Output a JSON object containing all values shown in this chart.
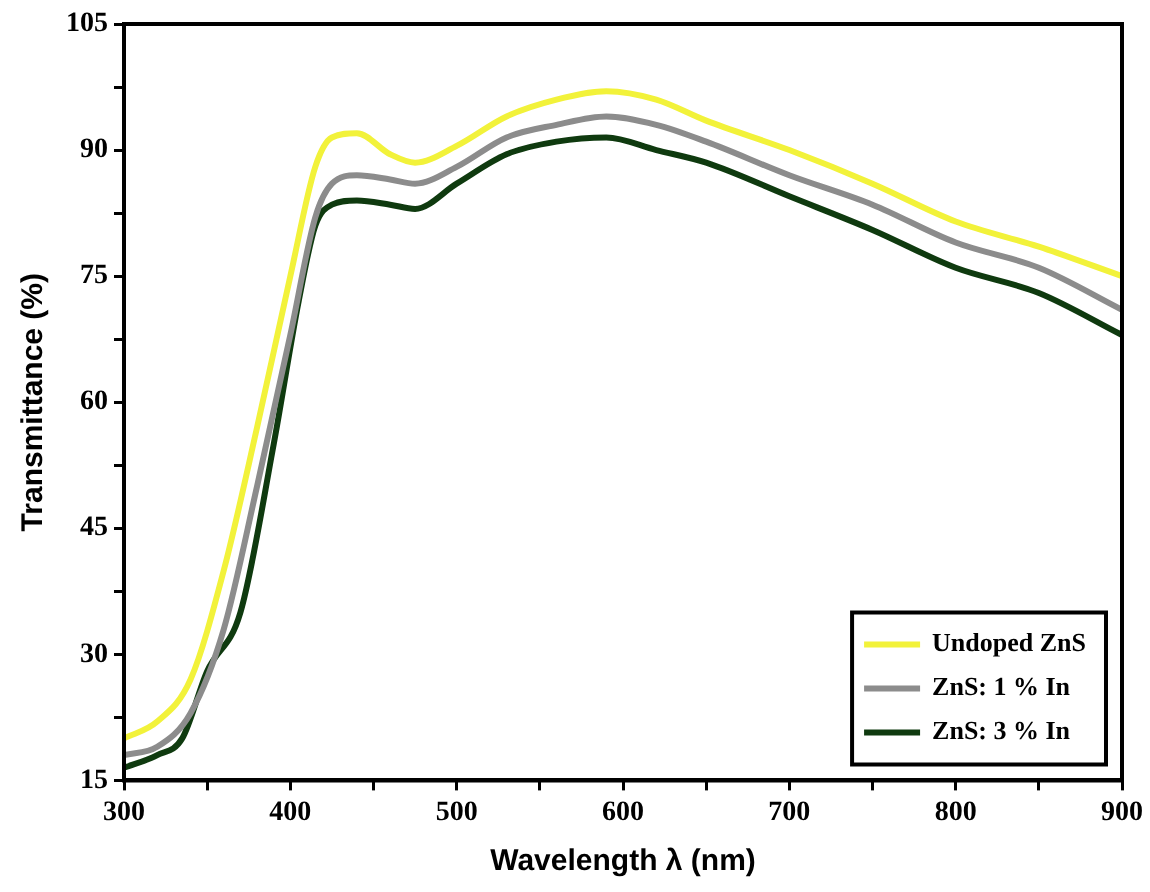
{
  "chart_data": {
    "type": "line",
    "xlabel": "Wavelength λ (nm)",
    "ylabel": "Transmittance (%)",
    "xlim": [
      300,
      900
    ],
    "xticks": [
      300,
      {
        "value": 350,
        "label": null
      },
      400,
      {
        "value": 450,
        "label": null
      },
      500,
      {
        "value": 550,
        "label": null
      },
      600,
      {
        "value": 650,
        "label": null
      },
      700,
      {
        "value": 750,
        "label": null
      },
      800,
      {
        "value": 850,
        "label": null
      },
      900
    ],
    "ylim": [
      15,
      105
    ],
    "yticks": [
      15,
      {
        "value": 22.5,
        "label": null
      },
      30,
      {
        "value": 37.5,
        "label": null
      },
      45,
      {
        "value": 52.5,
        "label": null
      },
      60,
      {
        "value": 67.5,
        "label": null
      },
      75,
      {
        "value": 82.5,
        "label": null
      },
      90,
      {
        "value": 97.5,
        "label": null
      },
      105
    ],
    "grid": false,
    "legend": "bottom right",
    "marker": "none",
    "line_style": "solid",
    "series": [
      {
        "name": "Undoped ZnS",
        "color": "#f2f23a",
        "x": [
          300,
          320,
          340,
          360,
          380,
          400,
          415,
          425,
          440,
          460,
          475,
          500,
          530,
          560,
          590,
          620,
          650,
          700,
          750,
          800,
          850,
          900
        ],
        "values": [
          20,
          22,
          27,
          40,
          57,
          75,
          88,
          91.5,
          92,
          89.5,
          88.5,
          90.5,
          94,
          96,
          97,
          96,
          93.5,
          90,
          86,
          81.5,
          78.5,
          75
        ]
      },
      {
        "name": "ZnS: 1 % In",
        "color": "#8c8c8c",
        "x": [
          300,
          320,
          340,
          360,
          380,
          400,
          415,
          425,
          440,
          460,
          475,
          500,
          530,
          560,
          590,
          620,
          650,
          700,
          750,
          800,
          850,
          900
        ],
        "values": [
          18,
          19,
          23,
          33,
          50,
          68,
          82,
          86,
          87,
          86.5,
          86,
          88,
          91.5,
          93,
          94,
          93,
          91,
          87,
          83.5,
          79,
          76,
          71
        ]
      },
      {
        "name": "ZnS: 3 % In",
        "color": "#0f3a0f",
        "x": [
          300,
          320,
          335,
          350,
          370,
          390,
          405,
          415,
          425,
          440,
          460,
          475,
          500,
          530,
          560,
          590,
          620,
          650,
          700,
          750,
          800,
          850,
          900
        ],
        "values": [
          16.5,
          18,
          20,
          28,
          35,
          55,
          72,
          81,
          83.5,
          84,
          83.5,
          83,
          86,
          89.5,
          91,
          91.5,
          90,
          88.5,
          84.5,
          80.5,
          76,
          73,
          68
        ]
      }
    ]
  }
}
